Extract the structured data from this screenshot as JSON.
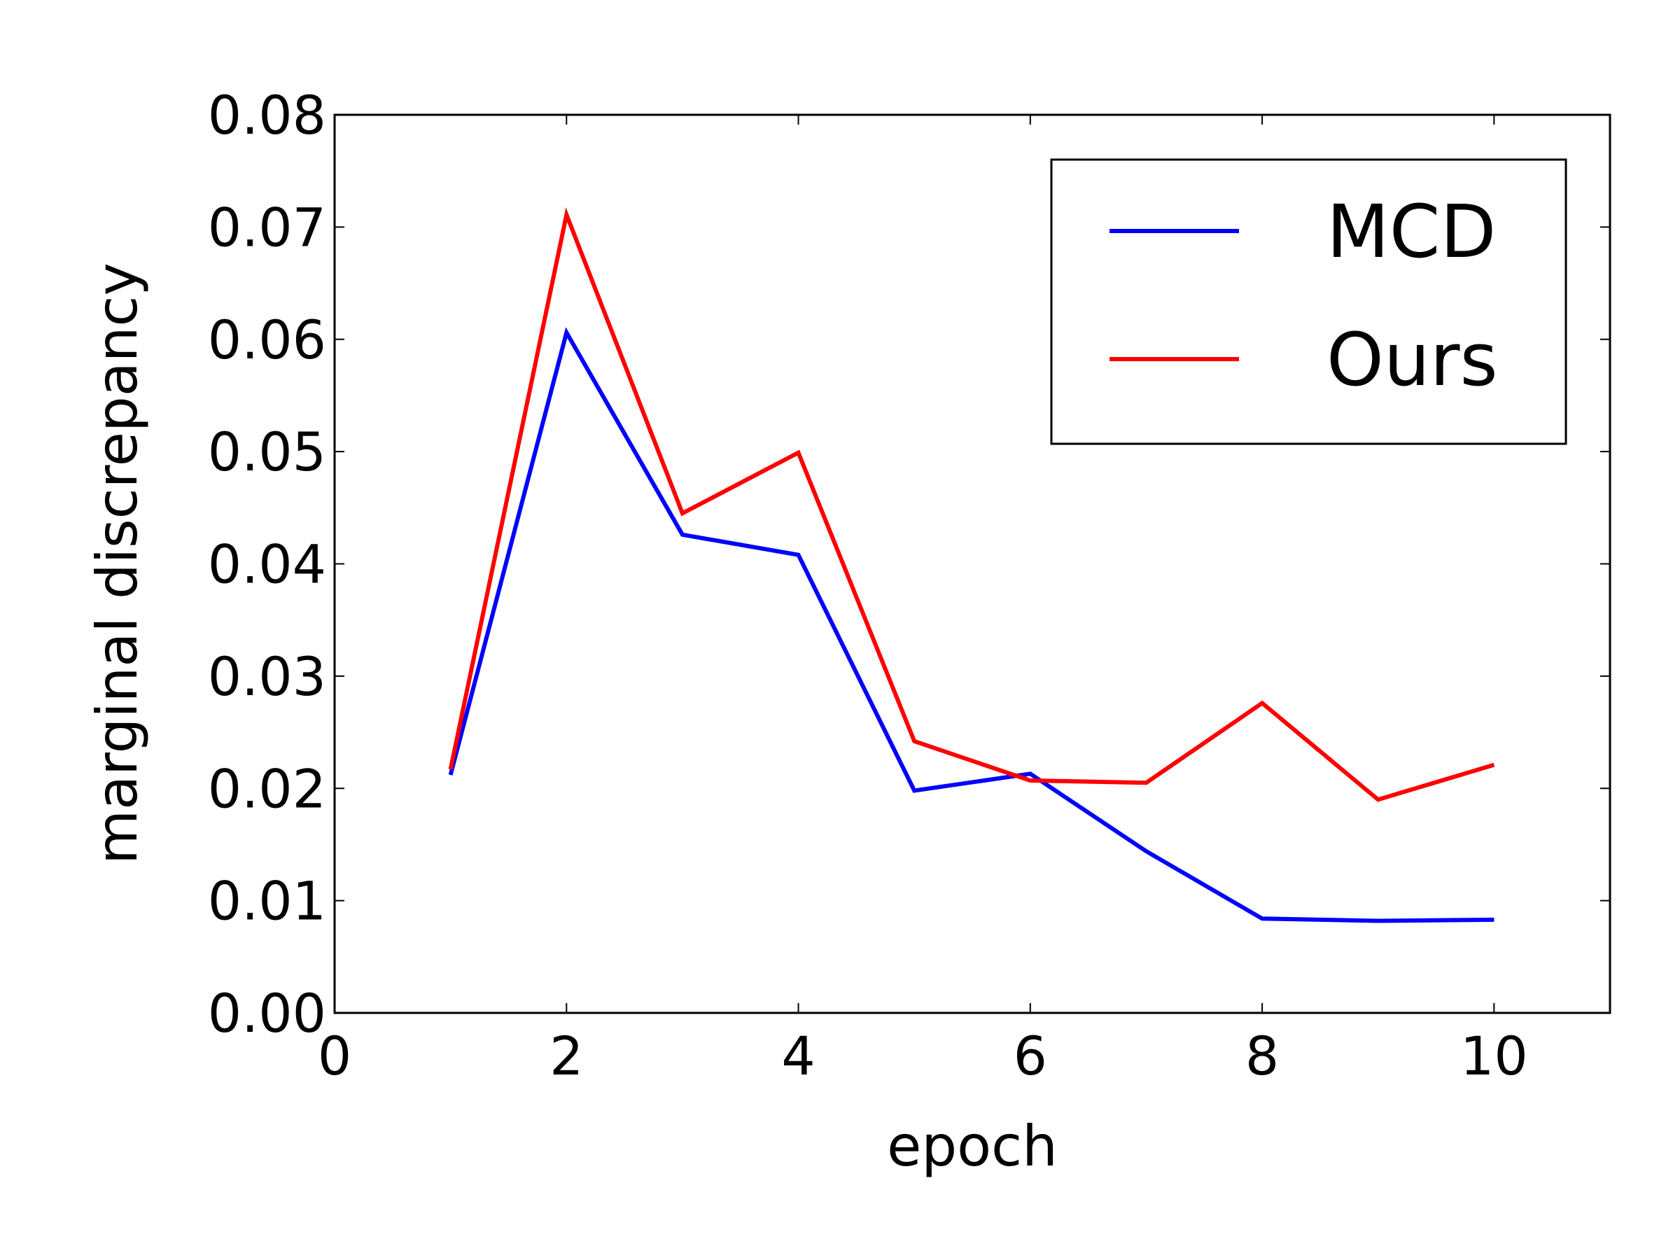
{
  "chart_data": {
    "type": "line",
    "title": "",
    "xlabel": "epoch",
    "ylabel": "marginal discrepancy",
    "xlim": [
      0,
      11
    ],
    "ylim": [
      0,
      0.08
    ],
    "x_ticks": [
      "0",
      "2",
      "4",
      "6",
      "8",
      "10"
    ],
    "y_ticks": [
      "0.00",
      "0.01",
      "0.02",
      "0.03",
      "0.04",
      "0.05",
      "0.06",
      "0.07",
      "0.08"
    ],
    "grid": false,
    "legend_position": "top-right",
    "x": [
      1,
      2,
      3,
      4,
      5,
      6,
      7,
      8,
      9,
      10
    ],
    "series": [
      {
        "name": "MCD",
        "color": "#0000ff",
        "values": [
          0.0212,
          0.0606,
          0.0426,
          0.0408,
          0.0198,
          0.0213,
          0.0144,
          0.0084,
          0.0082,
          0.0083
        ]
      },
      {
        "name": "Ours",
        "color": "#ff0000",
        "values": [
          0.0217,
          0.0711,
          0.0445,
          0.0499,
          0.0242,
          0.0207,
          0.0205,
          0.0276,
          0.019,
          0.0221
        ]
      }
    ]
  }
}
